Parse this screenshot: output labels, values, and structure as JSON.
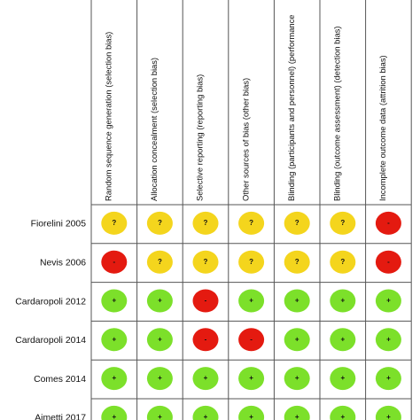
{
  "chart_data": {
    "type": "table",
    "title": "",
    "columns": [
      "Random sequence generation (selection bias)",
      "Allocation concealment (selection bias)",
      "Selective reporting (reporting bias)",
      "Other sources of bias (other bias)",
      "Blinding (participants and personnel) (performance",
      "Blinding (outcome assessment) (detection bias)",
      "Incomplete outcome data (attrition bias)"
    ],
    "rows": [
      "Fiorelini 2005",
      "Nevis 2006",
      "Cardaropoli 2012",
      "Cardaropoli 2014",
      "Comes 2014",
      "Aimetti 2017"
    ],
    "legend_symbols": {
      "low": "+",
      "unclear": "?",
      "high": "-"
    },
    "colors": {
      "low": "#7ce02a",
      "unclear": "#f4d51d",
      "high": "#e41a10",
      "grid": "#555555"
    },
    "judgements": [
      [
        "unclear",
        "unclear",
        "unclear",
        "unclear",
        "unclear",
        "unclear",
        "high"
      ],
      [
        "high",
        "unclear",
        "unclear",
        "unclear",
        "unclear",
        "unclear",
        "high"
      ],
      [
        "low",
        "low",
        "high",
        "low",
        "low",
        "low",
        "low"
      ],
      [
        "low",
        "low",
        "high",
        "high",
        "low",
        "low",
        "low"
      ],
      [
        "low",
        "low",
        "low",
        "low",
        "low",
        "low",
        "low"
      ],
      [
        "low",
        "low",
        "low",
        "low",
        "low",
        "low",
        "low"
      ]
    ]
  }
}
